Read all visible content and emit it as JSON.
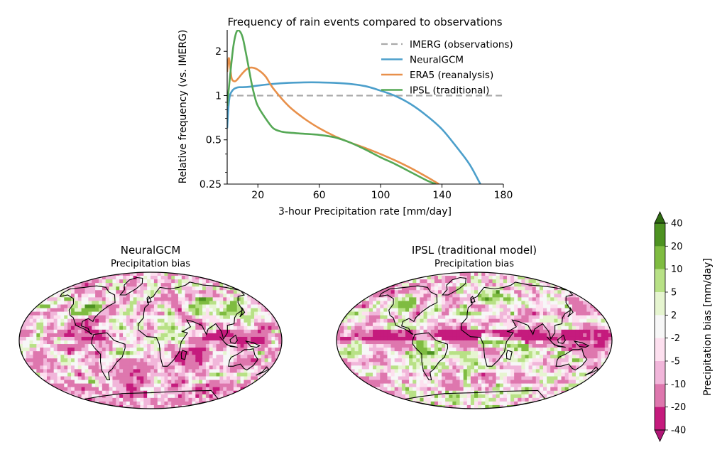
{
  "chart_data": [
    {
      "type": "line",
      "title": "Frequency of rain events compared to observations",
      "xlabel": "3-hour Precipitation rate [mm/day]",
      "ylabel": "Relative frequency (vs. IMERG)",
      "xlim": [
        0,
        180
      ],
      "ylim": [
        0.25,
        2.8
      ],
      "yscale": "log",
      "xticks": [
        20,
        60,
        100,
        140,
        180
      ],
      "yticks": [
        0.25,
        0.5,
        1,
        2
      ],
      "ytick_labels": [
        "0.25",
        "0.5",
        "1",
        "2"
      ],
      "legend_position": "top-right",
      "grid": false,
      "series": [
        {
          "name": "IMERG (observations)",
          "color": "#aaaaaa",
          "dashed": true,
          "x": [
            0,
            180
          ],
          "y": [
            1,
            1
          ]
        },
        {
          "name": "NeuralGCM",
          "color": "#4c9fcb",
          "x": [
            0,
            1,
            2,
            4,
            6,
            8,
            10,
            15,
            20,
            30,
            40,
            50,
            60,
            70,
            80,
            90,
            100,
            110,
            120,
            130,
            140,
            150,
            158,
            165
          ],
          "y": [
            0.6,
            0.88,
            1.02,
            1.1,
            1.13,
            1.14,
            1.14,
            1.15,
            1.17,
            1.2,
            1.22,
            1.23,
            1.23,
            1.22,
            1.2,
            1.16,
            1.08,
            0.99,
            0.87,
            0.73,
            0.59,
            0.44,
            0.34,
            0.25
          ]
        },
        {
          "name": "ERA5 (reanalysis)",
          "color": "#e8904a",
          "x": [
            0,
            1,
            2,
            3,
            5,
            7,
            10,
            13,
            16,
            20,
            25,
            30,
            40,
            50,
            60,
            70,
            80,
            90,
            100,
            110,
            120,
            130,
            138
          ],
          "y": [
            1.45,
            1.8,
            1.55,
            1.3,
            1.25,
            1.3,
            1.42,
            1.52,
            1.55,
            1.5,
            1.35,
            1.12,
            0.85,
            0.7,
            0.6,
            0.53,
            0.48,
            0.44,
            0.4,
            0.36,
            0.32,
            0.28,
            0.25
          ]
        },
        {
          "name": "IPSL (traditional)",
          "color": "#55a855",
          "x": [
            0,
            2,
            4,
            6,
            8,
            10,
            12,
            14,
            16,
            18,
            20,
            25,
            30,
            35,
            40,
            50,
            60,
            70,
            80,
            90,
            100,
            110,
            120,
            130,
            136
          ],
          "y": [
            0.85,
            1.4,
            2.15,
            2.7,
            2.75,
            2.5,
            2.0,
            1.55,
            1.2,
            0.98,
            0.85,
            0.7,
            0.6,
            0.57,
            0.56,
            0.55,
            0.54,
            0.52,
            0.48,
            0.43,
            0.38,
            0.34,
            0.3,
            0.265,
            0.25
          ]
        }
      ]
    },
    {
      "type": "heatmap",
      "title": "NeuralGCM",
      "subtitle": "Precipitation bias"
    },
    {
      "type": "heatmap",
      "title": "IPSL (traditional model)",
      "subtitle": "Precipitation bias"
    }
  ],
  "colorbar": {
    "label": "Precipitation bias [mm/day]",
    "levels": [
      "40",
      "20",
      "10",
      "5",
      "2",
      "-2",
      "-5",
      "-10",
      "-20",
      "-40"
    ],
    "colors": [
      "#4d9221",
      "#7fbc41",
      "#b8e186",
      "#e6f5d0",
      "#f7f7f7",
      "#fde0ef",
      "#f1b6da",
      "#de77ae",
      "#c51b7d"
    ],
    "extend_top": "#2f6b12",
    "extend_bottom": "#b01776"
  }
}
